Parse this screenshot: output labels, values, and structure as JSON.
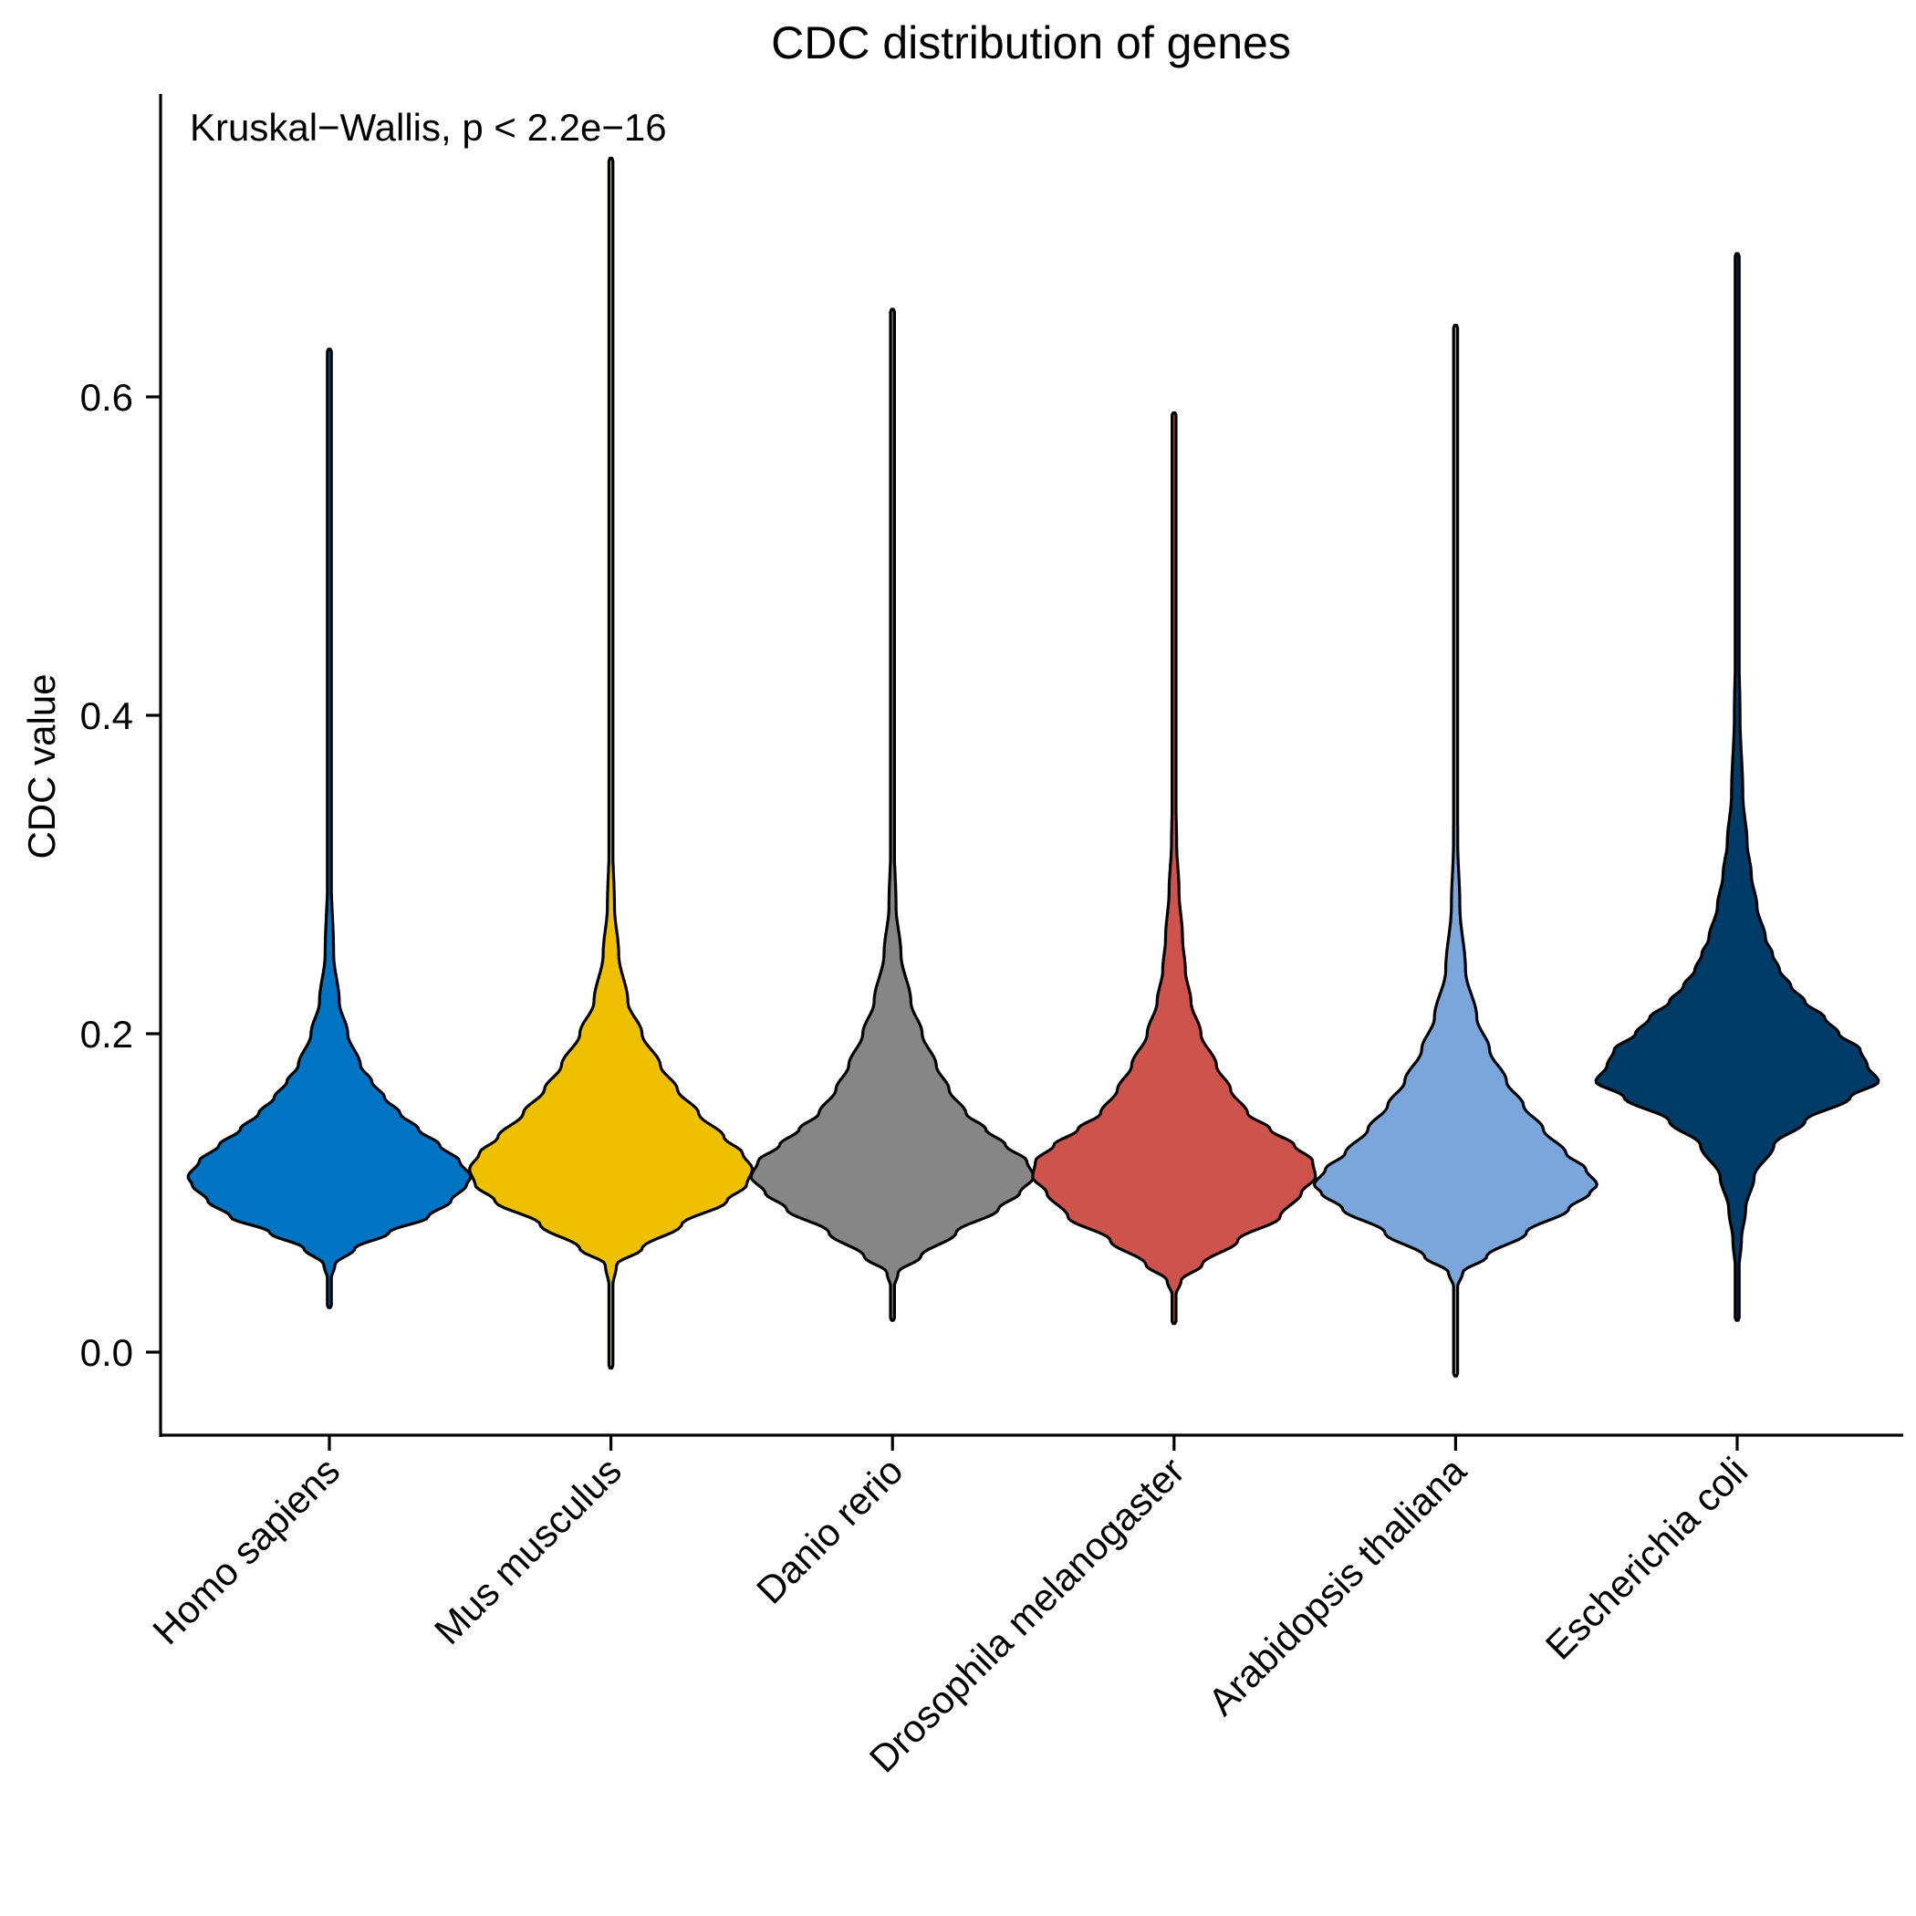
{
  "chart_data": {
    "type": "violin",
    "title": "CDC distribution of genes",
    "xlabel": "",
    "ylabel": "CDC value",
    "ylim": [
      -0.05,
      0.78
    ],
    "yticks": [
      0.0,
      0.2,
      0.4,
      0.6
    ],
    "ytick_labels": [
      "0.0",
      "0.2",
      "0.4",
      "0.6"
    ],
    "annotation": "Kruskal−Wallis, p < 2.2e−16",
    "grid": false,
    "legend": "none",
    "categories": [
      "Homo sapiens",
      "Mus musculus",
      "Danio rerio",
      "Drosophila melanogaster",
      "Arabidopsis thaliana",
      "Escherichia coli"
    ],
    "series": [
      {
        "category": "Homo sapiens",
        "color": "#0073C2",
        "min": 0.028,
        "max": 0.63,
        "mode": 0.11,
        "profile": [
          [
            0.028,
            0.0
          ],
          [
            0.045,
            0.01
          ],
          [
            0.055,
            0.04
          ],
          [
            0.065,
            0.18
          ],
          [
            0.075,
            0.42
          ],
          [
            0.085,
            0.7
          ],
          [
            0.095,
            0.86
          ],
          [
            0.105,
            0.97
          ],
          [
            0.11,
            1.0
          ],
          [
            0.12,
            0.92
          ],
          [
            0.13,
            0.78
          ],
          [
            0.14,
            0.63
          ],
          [
            0.15,
            0.5
          ],
          [
            0.16,
            0.39
          ],
          [
            0.17,
            0.3
          ],
          [
            0.18,
            0.22
          ],
          [
            0.2,
            0.13
          ],
          [
            0.22,
            0.07
          ],
          [
            0.25,
            0.03
          ],
          [
            0.3,
            0.012
          ],
          [
            0.4,
            0.006
          ],
          [
            0.5,
            0.004
          ],
          [
            0.63,
            0.0
          ]
        ]
      },
      {
        "category": "Mus musculus",
        "color": "#EFC000",
        "min": -0.01,
        "max": 0.75,
        "mode": 0.115,
        "profile": [
          [
            -0.01,
            0.0
          ],
          [
            0.04,
            0.01
          ],
          [
            0.055,
            0.04
          ],
          [
            0.065,
            0.22
          ],
          [
            0.08,
            0.5
          ],
          [
            0.095,
            0.82
          ],
          [
            0.105,
            0.96
          ],
          [
            0.115,
            1.0
          ],
          [
            0.125,
            0.93
          ],
          [
            0.135,
            0.8
          ],
          [
            0.15,
            0.62
          ],
          [
            0.165,
            0.47
          ],
          [
            0.18,
            0.35
          ],
          [
            0.2,
            0.22
          ],
          [
            0.22,
            0.12
          ],
          [
            0.25,
            0.055
          ],
          [
            0.28,
            0.025
          ],
          [
            0.32,
            0.012
          ],
          [
            0.4,
            0.006
          ],
          [
            0.5,
            0.004
          ],
          [
            0.75,
            0.0
          ]
        ]
      },
      {
        "category": "Danio rerio",
        "color": "#868686",
        "min": 0.02,
        "max": 0.655,
        "mode": 0.11,
        "profile": [
          [
            0.02,
            0.0
          ],
          [
            0.04,
            0.01
          ],
          [
            0.05,
            0.04
          ],
          [
            0.06,
            0.2
          ],
          [
            0.075,
            0.45
          ],
          [
            0.09,
            0.75
          ],
          [
            0.1,
            0.9
          ],
          [
            0.11,
            1.0
          ],
          [
            0.12,
            0.95
          ],
          [
            0.13,
            0.8
          ],
          [
            0.14,
            0.66
          ],
          [
            0.15,
            0.52
          ],
          [
            0.165,
            0.4
          ],
          [
            0.18,
            0.31
          ],
          [
            0.2,
            0.21
          ],
          [
            0.22,
            0.13
          ],
          [
            0.25,
            0.06
          ],
          [
            0.28,
            0.025
          ],
          [
            0.32,
            0.012
          ],
          [
            0.4,
            0.006
          ],
          [
            0.5,
            0.004
          ],
          [
            0.655,
            0.0
          ]
        ]
      },
      {
        "category": "Drosophila melanogaster",
        "color": "#CD534C",
        "min": 0.018,
        "max": 0.59,
        "mode": 0.12,
        "profile": [
          [
            0.018,
            0.0
          ],
          [
            0.035,
            0.01
          ],
          [
            0.045,
            0.05
          ],
          [
            0.055,
            0.2
          ],
          [
            0.07,
            0.45
          ],
          [
            0.085,
            0.75
          ],
          [
            0.1,
            0.9
          ],
          [
            0.11,
            1.0
          ],
          [
            0.12,
            0.98
          ],
          [
            0.13,
            0.85
          ],
          [
            0.14,
            0.68
          ],
          [
            0.15,
            0.52
          ],
          [
            0.165,
            0.4
          ],
          [
            0.18,
            0.3
          ],
          [
            0.2,
            0.19
          ],
          [
            0.22,
            0.12
          ],
          [
            0.24,
            0.08
          ],
          [
            0.26,
            0.06
          ],
          [
            0.29,
            0.035
          ],
          [
            0.32,
            0.018
          ],
          [
            0.36,
            0.009
          ],
          [
            0.45,
            0.005
          ],
          [
            0.59,
            0.0
          ]
        ]
      },
      {
        "category": "Arabidopsis thaliana",
        "color": "#7AA6DC",
        "min": -0.015,
        "max": 0.645,
        "mode": 0.105,
        "profile": [
          [
            -0.015,
            0.0
          ],
          [
            0.04,
            0.01
          ],
          [
            0.05,
            0.05
          ],
          [
            0.06,
            0.22
          ],
          [
            0.075,
            0.5
          ],
          [
            0.09,
            0.8
          ],
          [
            0.1,
            0.95
          ],
          [
            0.105,
            1.0
          ],
          [
            0.115,
            0.92
          ],
          [
            0.125,
            0.78
          ],
          [
            0.14,
            0.62
          ],
          [
            0.155,
            0.48
          ],
          [
            0.17,
            0.36
          ],
          [
            0.19,
            0.24
          ],
          [
            0.21,
            0.15
          ],
          [
            0.24,
            0.07
          ],
          [
            0.28,
            0.03
          ],
          [
            0.32,
            0.015
          ],
          [
            0.4,
            0.006
          ],
          [
            0.5,
            0.004
          ],
          [
            0.645,
            0.0
          ]
        ]
      },
      {
        "category": "Escherichia coli",
        "color": "#003C67",
        "min": 0.02,
        "max": 0.69,
        "mode": 0.17,
        "profile": [
          [
            0.02,
            0.0
          ],
          [
            0.05,
            0.01
          ],
          [
            0.07,
            0.03
          ],
          [
            0.09,
            0.06
          ],
          [
            0.11,
            0.12
          ],
          [
            0.13,
            0.26
          ],
          [
            0.145,
            0.48
          ],
          [
            0.16,
            0.8
          ],
          [
            0.17,
            1.0
          ],
          [
            0.18,
            0.92
          ],
          [
            0.19,
            0.87
          ],
          [
            0.2,
            0.72
          ],
          [
            0.21,
            0.62
          ],
          [
            0.22,
            0.48
          ],
          [
            0.23,
            0.38
          ],
          [
            0.24,
            0.3
          ],
          [
            0.25,
            0.25
          ],
          [
            0.26,
            0.2
          ],
          [
            0.28,
            0.14
          ],
          [
            0.3,
            0.1
          ],
          [
            0.32,
            0.07
          ],
          [
            0.35,
            0.04
          ],
          [
            0.4,
            0.02
          ],
          [
            0.45,
            0.01
          ],
          [
            0.55,
            0.005
          ],
          [
            0.69,
            0.0
          ]
        ]
      }
    ]
  }
}
